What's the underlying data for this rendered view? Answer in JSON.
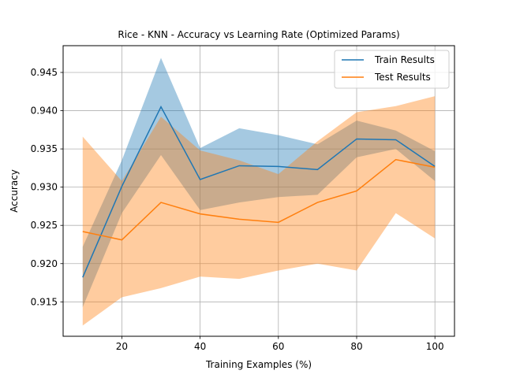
{
  "chart_data": {
    "type": "line",
    "title": "Rice - KNN - Accuracy vs Learning Rate (Optimized Params)",
    "xlabel": "Training Examples (%)",
    "ylabel": "Accuracy",
    "xlim": [
      5,
      105
    ],
    "ylim": [
      0.9105,
      0.9485
    ],
    "xticks": [
      20,
      40,
      60,
      80,
      100
    ],
    "yticks": [
      0.915,
      0.92,
      0.925,
      0.93,
      0.935,
      0.94,
      0.945
    ],
    "ytick_labels": [
      "0.915",
      "0.920",
      "0.925",
      "0.930",
      "0.935",
      "0.940",
      "0.945"
    ],
    "grid": true,
    "legend_position": "top-right",
    "x": [
      10,
      20,
      30,
      40,
      50,
      60,
      70,
      80,
      90,
      100
    ],
    "series": [
      {
        "name": "Train Results",
        "color": "#1f77b4",
        "band_color": "#1f77b4",
        "values": [
          0.9182,
          0.9301,
          0.9405,
          0.931,
          0.9328,
          0.9327,
          0.9323,
          0.9363,
          0.9362,
          0.9327
        ],
        "upper": [
          0.9222,
          0.9335,
          0.9469,
          0.9351,
          0.9377,
          0.9368,
          0.9356,
          0.9387,
          0.9374,
          0.9347
        ],
        "lower": [
          0.9143,
          0.9266,
          0.9342,
          0.927,
          0.928,
          0.9287,
          0.929,
          0.9339,
          0.935,
          0.9308
        ]
      },
      {
        "name": "Test Results",
        "color": "#ff7f0e",
        "band_color": "#ff7f0e",
        "values": [
          0.9242,
          0.9231,
          0.928,
          0.9265,
          0.9258,
          0.9254,
          0.928,
          0.9295,
          0.9336,
          0.9326
        ],
        "upper": [
          0.9366,
          0.9308,
          0.9392,
          0.9348,
          0.9335,
          0.9317,
          0.936,
          0.9398,
          0.9406,
          0.9419
        ],
        "lower": [
          0.9119,
          0.9156,
          0.9168,
          0.9183,
          0.918,
          0.9191,
          0.92,
          0.9191,
          0.9266,
          0.9233
        ]
      }
    ]
  }
}
